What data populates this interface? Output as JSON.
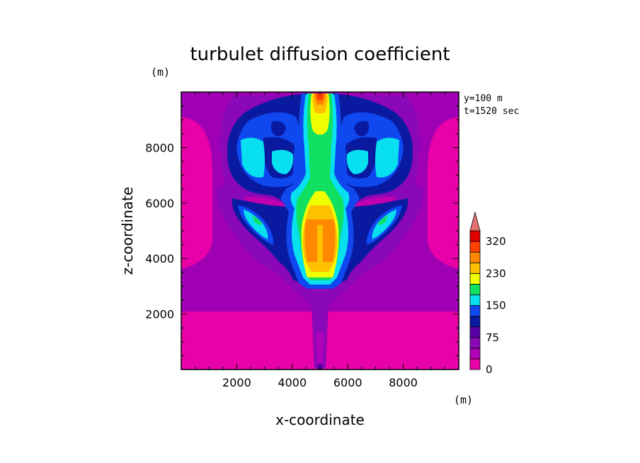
{
  "chart_data": {
    "type": "heatmap",
    "title": "turbulet diffusion coefficient",
    "xlabel": "x-coordinate",
    "ylabel": "z-coordinate",
    "x_unit": "(m)",
    "y_unit": "(m)",
    "annotations": [
      "y=100 m",
      "t=1520 sec"
    ],
    "xlim": [
      0,
      10000
    ],
    "ylim": [
      0,
      10000
    ],
    "x_ticks": [
      2000,
      4000,
      6000,
      8000
    ],
    "y_ticks": [
      2000,
      4000,
      6000,
      8000
    ],
    "colorbar": {
      "levels": [
        0,
        25,
        50,
        75,
        100,
        125,
        150,
        175,
        200,
        230,
        260,
        290,
        320
      ],
      "tick_labels": [
        "0",
        "75",
        "150",
        "230",
        "320"
      ],
      "tick_values": [
        0,
        75,
        150,
        230,
        320
      ],
      "colors": [
        "#e800a8",
        "#b000b8",
        "#8a08b8",
        "#5a00a8",
        "#0a1aa0",
        "#1048f0",
        "#08e0f0",
        "#10e060",
        "#f0ff00",
        "#ffc000",
        "#ff8800",
        "#ff4000",
        "#e00000"
      ],
      "overflow_color": "#e87070"
    },
    "regions": [
      {
        "name": "background",
        "value": 10
      },
      {
        "name": "upper-left-side-band",
        "value": 30,
        "x": [
          0,
          1800
        ],
        "z": [
          3200,
          8800
        ]
      },
      {
        "name": "upper-right-side-band",
        "value": 30,
        "x": [
          8200,
          10000
        ],
        "z": [
          3200,
          8800
        ]
      },
      {
        "name": "mid-layer",
        "value": 35,
        "x": [
          0,
          10000
        ],
        "z": [
          2000,
          9800
        ]
      },
      {
        "name": "upper-lobe-dark-left",
        "value": 85,
        "x": [
          1800,
          4600
        ],
        "z": [
          6200,
          9400
        ]
      },
      {
        "name": "upper-lobe-dark-right",
        "value": 85,
        "x": [
          5400,
          8200
        ],
        "z": [
          6200,
          9400
        ]
      },
      {
        "name": "lobe-cyan-left",
        "value": 160,
        "x": [
          2100,
          3400
        ],
        "z": [
          6600,
          8400
        ]
      },
      {
        "name": "lobe-cyan-right",
        "value": 160,
        "x": [
          6600,
          7900
        ],
        "z": [
          6600,
          8400
        ]
      },
      {
        "name": "central-column",
        "value": 190,
        "x": [
          4200,
          5800
        ],
        "z": [
          3000,
          9800
        ]
      },
      {
        "name": "central-core",
        "value": 250,
        "x": [
          4400,
          5600
        ],
        "z": [
          3600,
          5600
        ]
      },
      {
        "name": "top-peak",
        "value": 320,
        "x": [
          4800,
          5200
        ],
        "z": [
          9400,
          9800
        ]
      },
      {
        "name": "wing-left",
        "value": 170,
        "x": [
          2000,
          3400
        ],
        "z": [
          4600,
          5800
        ]
      },
      {
        "name": "wing-right",
        "value": 170,
        "x": [
          6600,
          8000
        ],
        "z": [
          4600,
          5800
        ]
      }
    ]
  }
}
